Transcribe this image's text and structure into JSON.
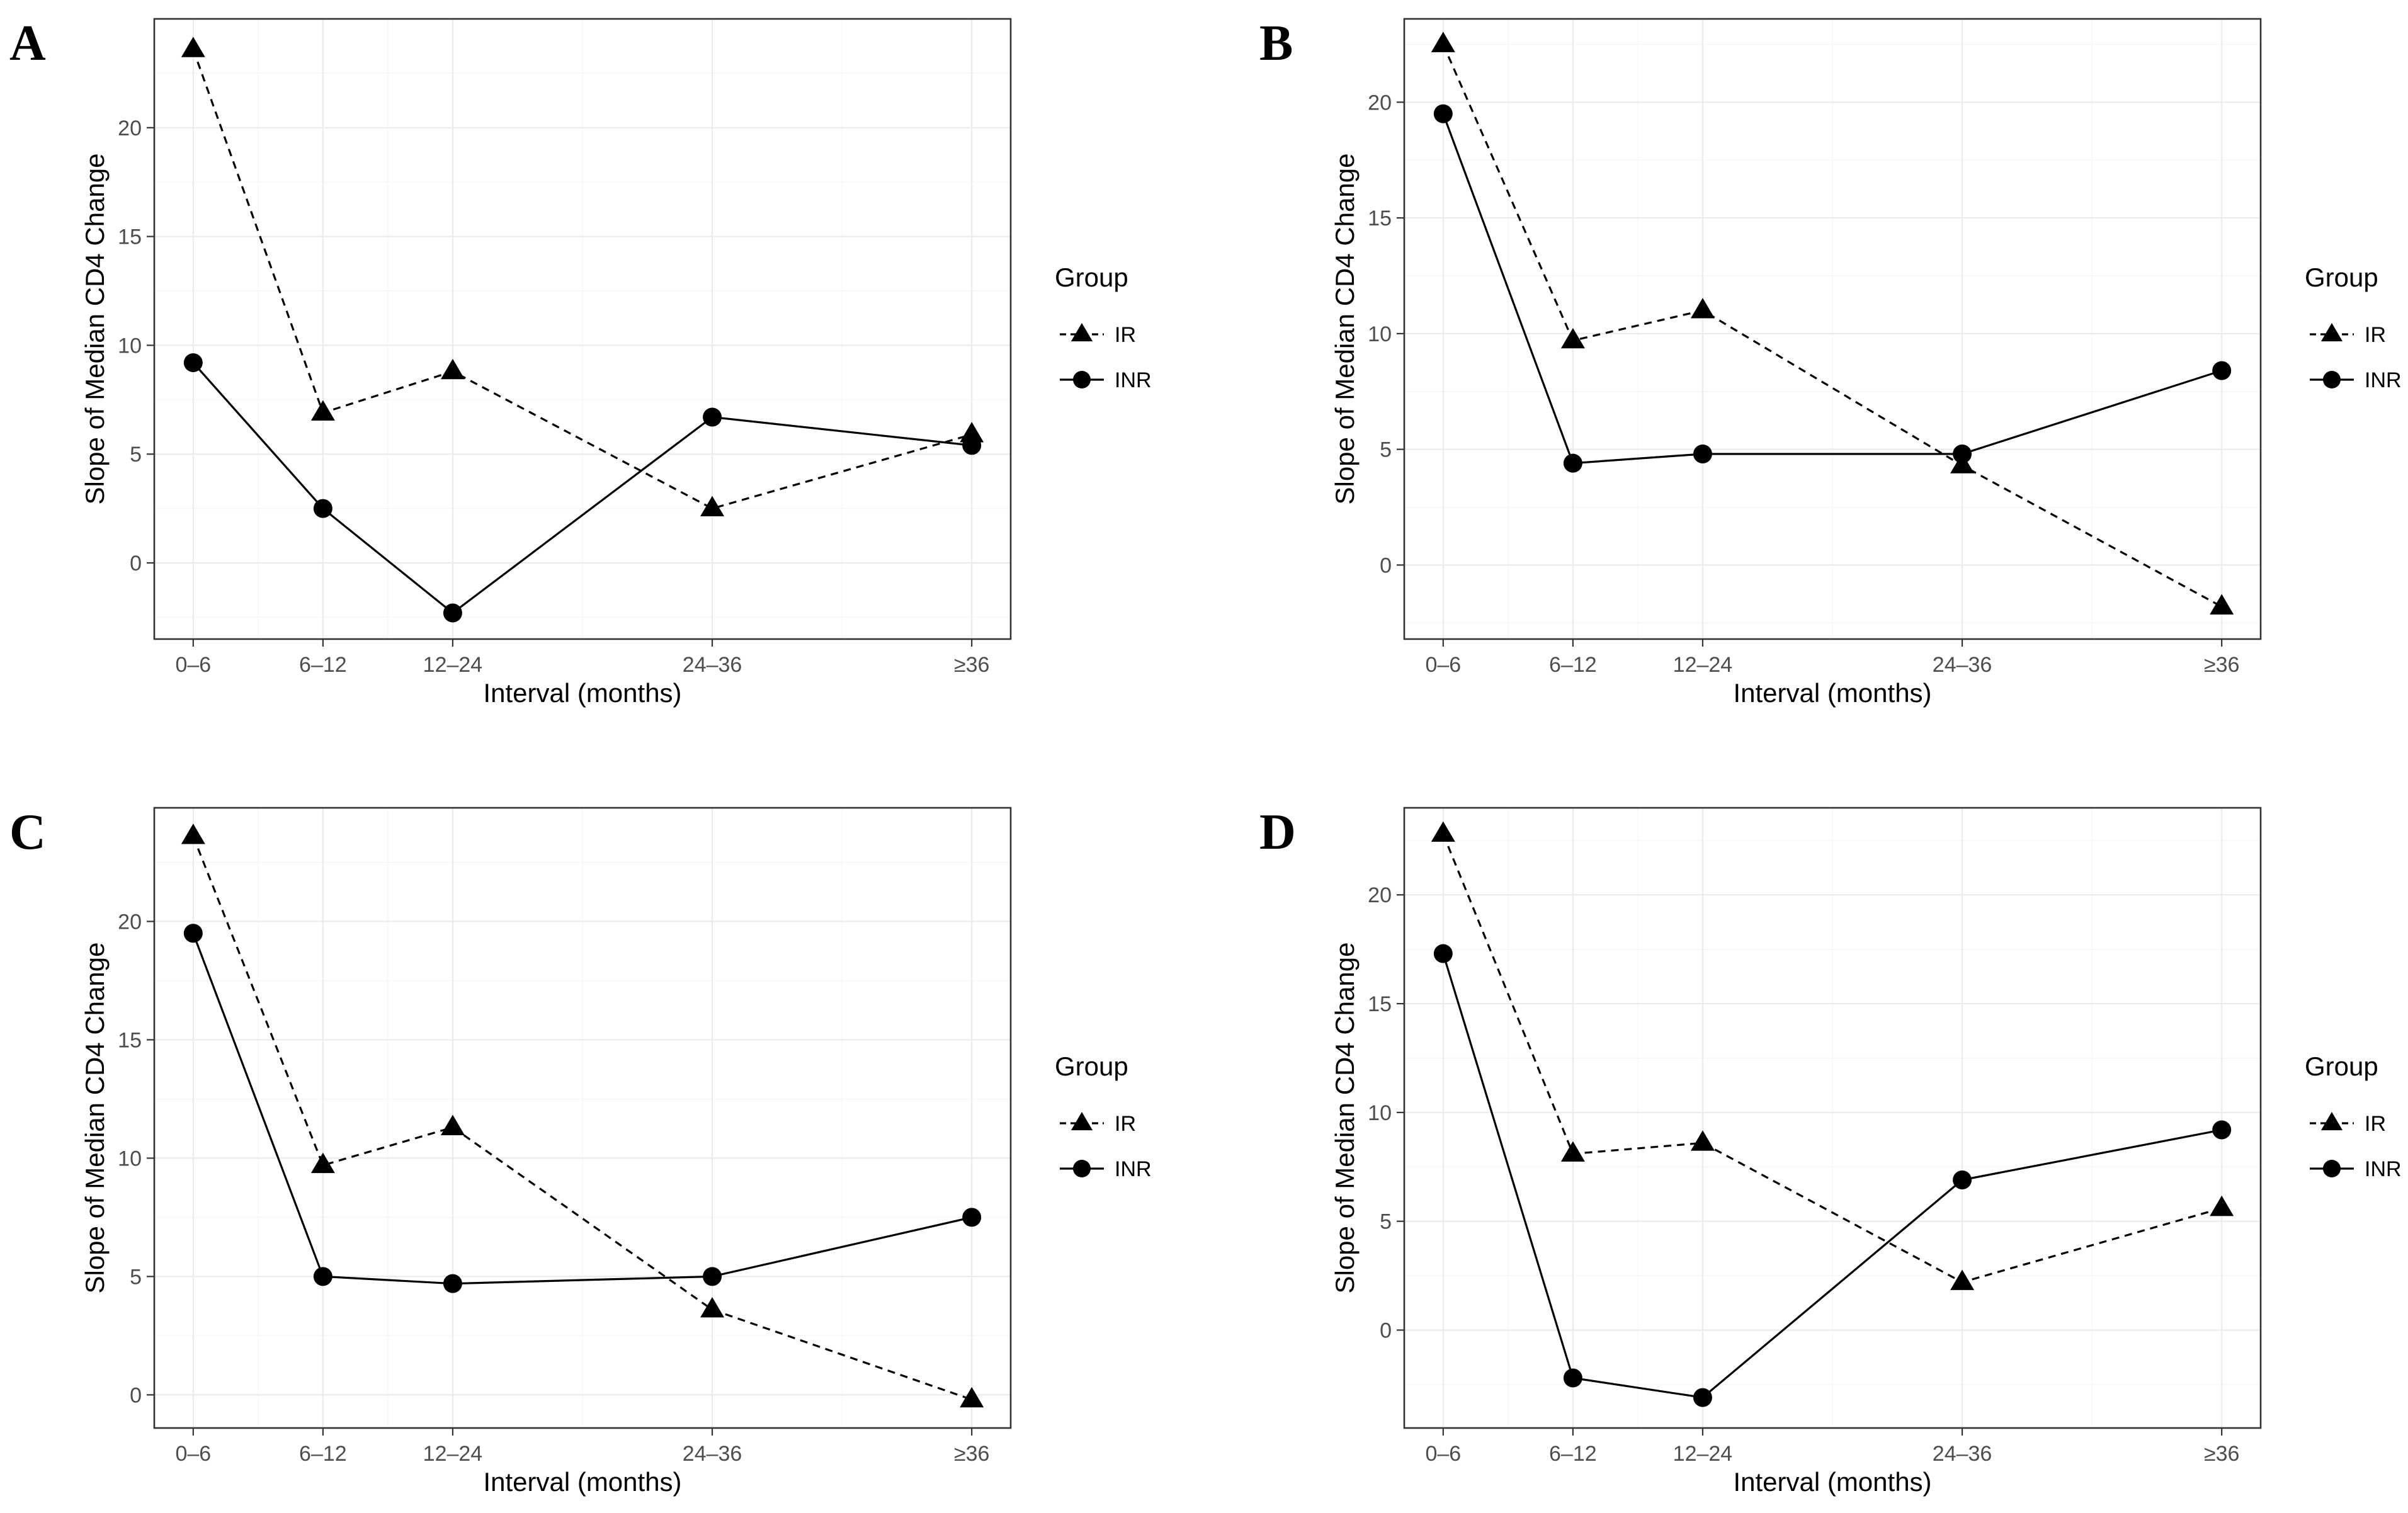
{
  "chart_data": [
    {
      "panel": "A",
      "type": "line",
      "categories": [
        "0–6",
        "6–12",
        "12–24",
        "24–36",
        "≥36"
      ],
      "x": [
        0,
        1,
        2,
        4,
        6
      ],
      "xlabel": "Interval (months)",
      "ylabel": "Slope of Median CD4 Change",
      "ylim": [
        -3.5,
        25
      ],
      "yticks": [
        0,
        5,
        10,
        15,
        20
      ],
      "legend": {
        "title": "Group",
        "position": "right"
      },
      "series": [
        {
          "name": "IR",
          "marker": "triangle",
          "line": "dashed",
          "values": [
            23.6,
            6.9,
            8.8,
            2.5,
            5.9
          ]
        },
        {
          "name": "INR",
          "marker": "circle",
          "line": "solid",
          "values": [
            9.2,
            2.5,
            -2.3,
            6.7,
            5.4
          ]
        }
      ]
    },
    {
      "panel": "B",
      "type": "line",
      "categories": [
        "0–6",
        "6–12",
        "12–24",
        "24–36",
        "≥36"
      ],
      "x": [
        0,
        1,
        2,
        4,
        6
      ],
      "xlabel": "Interval (months)",
      "ylabel": "Slope of Median CD4 Change",
      "ylim": [
        -3.2,
        23.6
      ],
      "yticks": [
        0,
        5,
        10,
        15,
        20
      ],
      "legend": {
        "title": "Group",
        "position": "right"
      },
      "series": [
        {
          "name": "IR",
          "marker": "triangle",
          "line": "dashed",
          "values": [
            22.5,
            9.7,
            11.0,
            4.3,
            -1.8
          ]
        },
        {
          "name": "INR",
          "marker": "circle",
          "line": "solid",
          "values": [
            19.5,
            4.4,
            4.8,
            4.8,
            8.4
          ]
        }
      ]
    },
    {
      "panel": "C",
      "type": "line",
      "categories": [
        "0–6",
        "6–12",
        "12–24",
        "24–36",
        "≥36"
      ],
      "x": [
        0,
        1,
        2,
        4,
        6
      ],
      "xlabel": "Interval (months)",
      "ylabel": "Slope of Median CD4 Change",
      "ylim": [
        -1.4,
        24.8
      ],
      "yticks": [
        0,
        5,
        10,
        15,
        20
      ],
      "legend": {
        "title": "Group",
        "position": "right"
      },
      "series": [
        {
          "name": "IR",
          "marker": "triangle",
          "line": "dashed",
          "values": [
            23.6,
            9.7,
            11.3,
            3.6,
            -0.2
          ]
        },
        {
          "name": "INR",
          "marker": "circle",
          "line": "solid",
          "values": [
            19.5,
            5.0,
            4.7,
            5.0,
            7.5
          ]
        }
      ]
    },
    {
      "panel": "D",
      "type": "line",
      "categories": [
        "0–6",
        "6–12",
        "12–24",
        "24–36",
        "≥36"
      ],
      "x": [
        0,
        1,
        2,
        4,
        6
      ],
      "xlabel": "Interval (months)",
      "ylabel": "Slope of Median CD4 Change",
      "ylim": [
        -4.5,
        24
      ],
      "yticks": [
        0,
        5,
        10,
        15,
        20
      ],
      "legend": {
        "title": "Group",
        "position": "right"
      },
      "series": [
        {
          "name": "IR",
          "marker": "triangle",
          "line": "dashed",
          "values": [
            22.8,
            8.1,
            8.6,
            2.2,
            5.6
          ]
        },
        {
          "name": "INR",
          "marker": "circle",
          "line": "solid",
          "values": [
            17.3,
            -2.2,
            -3.1,
            6.9,
            9.2
          ]
        }
      ]
    }
  ]
}
